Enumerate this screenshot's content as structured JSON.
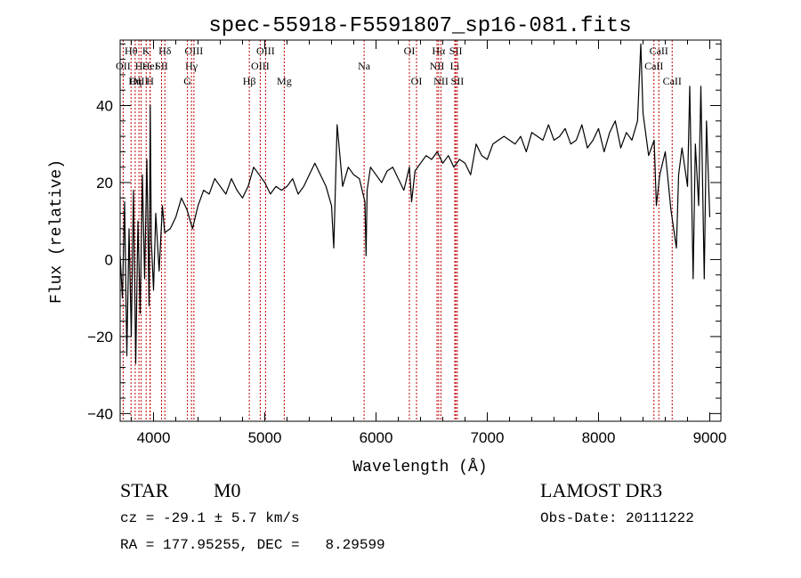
{
  "chart_data": {
    "type": "line",
    "title": "spec-55918-F5591807_sp16-081.fits",
    "xlabel": "Wavelength (Å)",
    "ylabel": "Flux (relative)",
    "xlim": [
      3700,
      9100
    ],
    "ylim": [
      -42,
      57
    ],
    "xticks": [
      4000,
      5000,
      6000,
      7000,
      8000,
      9000
    ],
    "yticks": [
      -40,
      -20,
      0,
      20,
      40
    ],
    "series": [
      {
        "name": "flux",
        "color": "#000000",
        "x": [
          3700,
          3720,
          3740,
          3760,
          3780,
          3800,
          3820,
          3840,
          3860,
          3880,
          3900,
          3920,
          3940,
          3960,
          3970,
          3980,
          4000,
          4020,
          4050,
          4080,
          4100,
          4150,
          4200,
          4250,
          4300,
          4350,
          4400,
          4450,
          4500,
          4550,
          4600,
          4650,
          4700,
          4750,
          4800,
          4850,
          4900,
          4950,
          5000,
          5050,
          5100,
          5150,
          5200,
          5250,
          5300,
          5350,
          5400,
          5450,
          5500,
          5550,
          5600,
          5620,
          5650,
          5700,
          5750,
          5800,
          5850,
          5900,
          5910,
          5920,
          5950,
          6000,
          6050,
          6100,
          6150,
          6200,
          6250,
          6300,
          6320,
          6350,
          6400,
          6450,
          6500,
          6550,
          6600,
          6650,
          6700,
          6750,
          6800,
          6850,
          6900,
          6950,
          7000,
          7050,
          7100,
          7150,
          7200,
          7250,
          7300,
          7350,
          7400,
          7450,
          7500,
          7550,
          7600,
          7650,
          7700,
          7750,
          7800,
          7850,
          7900,
          7950,
          8000,
          8050,
          8100,
          8150,
          8200,
          8250,
          8300,
          8350,
          8380,
          8400,
          8450,
          8500,
          8520,
          8550,
          8600,
          8650,
          8700,
          8720,
          8750,
          8800,
          8820,
          8850,
          8870,
          8900,
          8920,
          8950,
          8970,
          9000
        ],
        "values": [
          1,
          -10,
          15,
          -25,
          8,
          -20,
          18,
          -27,
          10,
          -14,
          22,
          -5,
          26,
          -12,
          40,
          5,
          -8,
          12,
          -3,
          14,
          7,
          8,
          11,
          16,
          13,
          8,
          14,
          18,
          17,
          21,
          19,
          17,
          21,
          18,
          16,
          19,
          24,
          22,
          20,
          17,
          19,
          18,
          19,
          21,
          17,
          19,
          22,
          25,
          22,
          19,
          14,
          3,
          35,
          19,
          24,
          22,
          21,
          15,
          1,
          18,
          24,
          22,
          20,
          23,
          24,
          21,
          18,
          24,
          15,
          23,
          25,
          27,
          26,
          28,
          25,
          27,
          24,
          26,
          25,
          22,
          30,
          27,
          26,
          30,
          31,
          32,
          31,
          30,
          32,
          28,
          33,
          32,
          31,
          35,
          31,
          32,
          34,
          30,
          31,
          35,
          29,
          31,
          34,
          28,
          33,
          36,
          29,
          33,
          31,
          36,
          56,
          38,
          27,
          31,
          14,
          22,
          28,
          13,
          3,
          22,
          29,
          19,
          45,
          -5,
          30,
          14,
          45,
          -5,
          36,
          11
        ]
      }
    ],
    "line_markers": [
      {
        "label": "Hθ",
        "wavelength": 3798,
        "row": 1
      },
      {
        "label": "OII",
        "wavelength": 3727,
        "row": 2
      },
      {
        "label": "OIII",
        "wavelength": 3869,
        "row": 3
      },
      {
        "label": "Hε",
        "wavelength": 3889,
        "row": 2
      },
      {
        "label": "K",
        "wavelength": 3934,
        "row": 1
      },
      {
        "label": "HeI",
        "wavelength": 3970,
        "row": 2
      },
      {
        "label": "Hη",
        "wavelength": 3835,
        "row": 3
      },
      {
        "label": "H",
        "wavelength": 3969,
        "row": 3
      },
      {
        "label": "Hδ",
        "wavelength": 4102,
        "row": 1
      },
      {
        "label": "SII",
        "wavelength": 4072,
        "row": 2
      },
      {
        "label": "OIII",
        "wavelength": 4363,
        "row": 1
      },
      {
        "label": "Hγ",
        "wavelength": 4341,
        "row": 2
      },
      {
        "label": "G",
        "wavelength": 4305,
        "row": 3
      },
      {
        "label": "OIII",
        "wavelength": 5007,
        "row": 1
      },
      {
        "label": "OIII",
        "wavelength": 4959,
        "row": 2
      },
      {
        "label": "Hβ",
        "wavelength": 4861,
        "row": 3
      },
      {
        "label": "Mg",
        "wavelength": 5175,
        "row": 3
      },
      {
        "label": "Na",
        "wavelength": 5893,
        "row": 2
      },
      {
        "label": "OI",
        "wavelength": 6300,
        "row": 1
      },
      {
        "label": "OI",
        "wavelength": 6364,
        "row": 3
      },
      {
        "label": "Hα",
        "wavelength": 6563,
        "row": 1
      },
      {
        "label": "NII",
        "wavelength": 6548,
        "row": 2
      },
      {
        "label": "NII",
        "wavelength": 6584,
        "row": 3
      },
      {
        "label": "SII",
        "wavelength": 6717,
        "row": 1
      },
      {
        "label": "Li",
        "wavelength": 6708,
        "row": 2
      },
      {
        "label": "SII",
        "wavelength": 6731,
        "row": 3
      },
      {
        "label": "CaII",
        "wavelength": 8542,
        "row": 1
      },
      {
        "label": "CaII",
        "wavelength": 8498,
        "row": 2
      },
      {
        "label": "CaII",
        "wavelength": 8662,
        "row": 3
      }
    ],
    "marker_color": "#c00000"
  },
  "info": {
    "object_class": "STAR",
    "subclass": "M0",
    "survey": "LAMOST DR3",
    "redshift_line": "cz = -29.1 ± 5.7 km/s",
    "obs_date_line": "Obs-Date: 20111222",
    "coords_line": "RA = 177.95255, DEC =   8.29599"
  }
}
